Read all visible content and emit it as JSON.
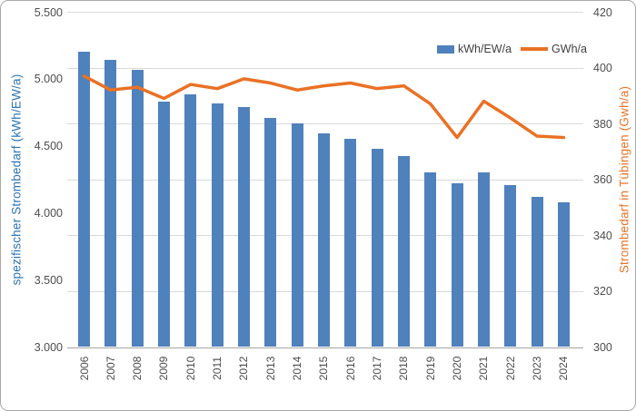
{
  "chart_data": {
    "type": "combo bar+line, dual y-axis",
    "title": "",
    "categories": [
      "2006",
      "2007",
      "2008",
      "2009",
      "2010",
      "2011",
      "2012",
      "2013",
      "2014",
      "2015",
      "2016",
      "2017",
      "2018",
      "2019",
      "2020",
      "2021",
      "2022",
      "2023",
      "2024"
    ],
    "series": [
      {
        "name": "kWh/EW/a",
        "type": "bar",
        "axis": "left",
        "color": "#4f81bd",
        "values": [
          5200,
          5140,
          5065,
          4830,
          4885,
          4820,
          4790,
          4710,
          4665,
          4595,
          4555,
          4480,
          4425,
          4300,
          4220,
          4305,
          4205,
          4120,
          4080
        ]
      },
      {
        "name": "GWh/a",
        "type": "line",
        "axis": "right",
        "color": "#ea7125",
        "values": [
          397,
          392,
          393,
          389,
          394,
          392.5,
          396,
          394.5,
          392,
          393.5,
          394.5,
          392.5,
          393.5,
          387,
          375,
          388,
          382,
          375.5,
          375
        ]
      }
    ],
    "ylabel_left": "spezifischer Strombedarf (kWh/EW/a)",
    "ylabel_right": "Strombedarf in Tübingen (Gwh/a)",
    "y_left": {
      "min": 3000,
      "max": 5500,
      "step": 500,
      "tick_labels": [
        "3.000",
        "3.500",
        "4.000",
        "4.500",
        "5.000",
        "5.500"
      ]
    },
    "y_right": {
      "min": 300,
      "max": 420,
      "step": 20,
      "tick_labels": [
        "300",
        "320",
        "340",
        "360",
        "380",
        "400",
        "420"
      ]
    },
    "legend": [
      "kWh/EW/a",
      "GWh/a"
    ],
    "grid": "horizontal gridlines at right-axis ticks, legend top-right inside plot",
    "colors": {
      "bar": "#4f81bd",
      "line": "#ea7125",
      "left_axis_title": "#2e75b6",
      "right_axis_title": "#e8752a",
      "tick_text": "#4d4d4d",
      "gridline": "#d9d9d9",
      "axis_line": "#a6a6a6",
      "background": "#ffffff"
    }
  }
}
